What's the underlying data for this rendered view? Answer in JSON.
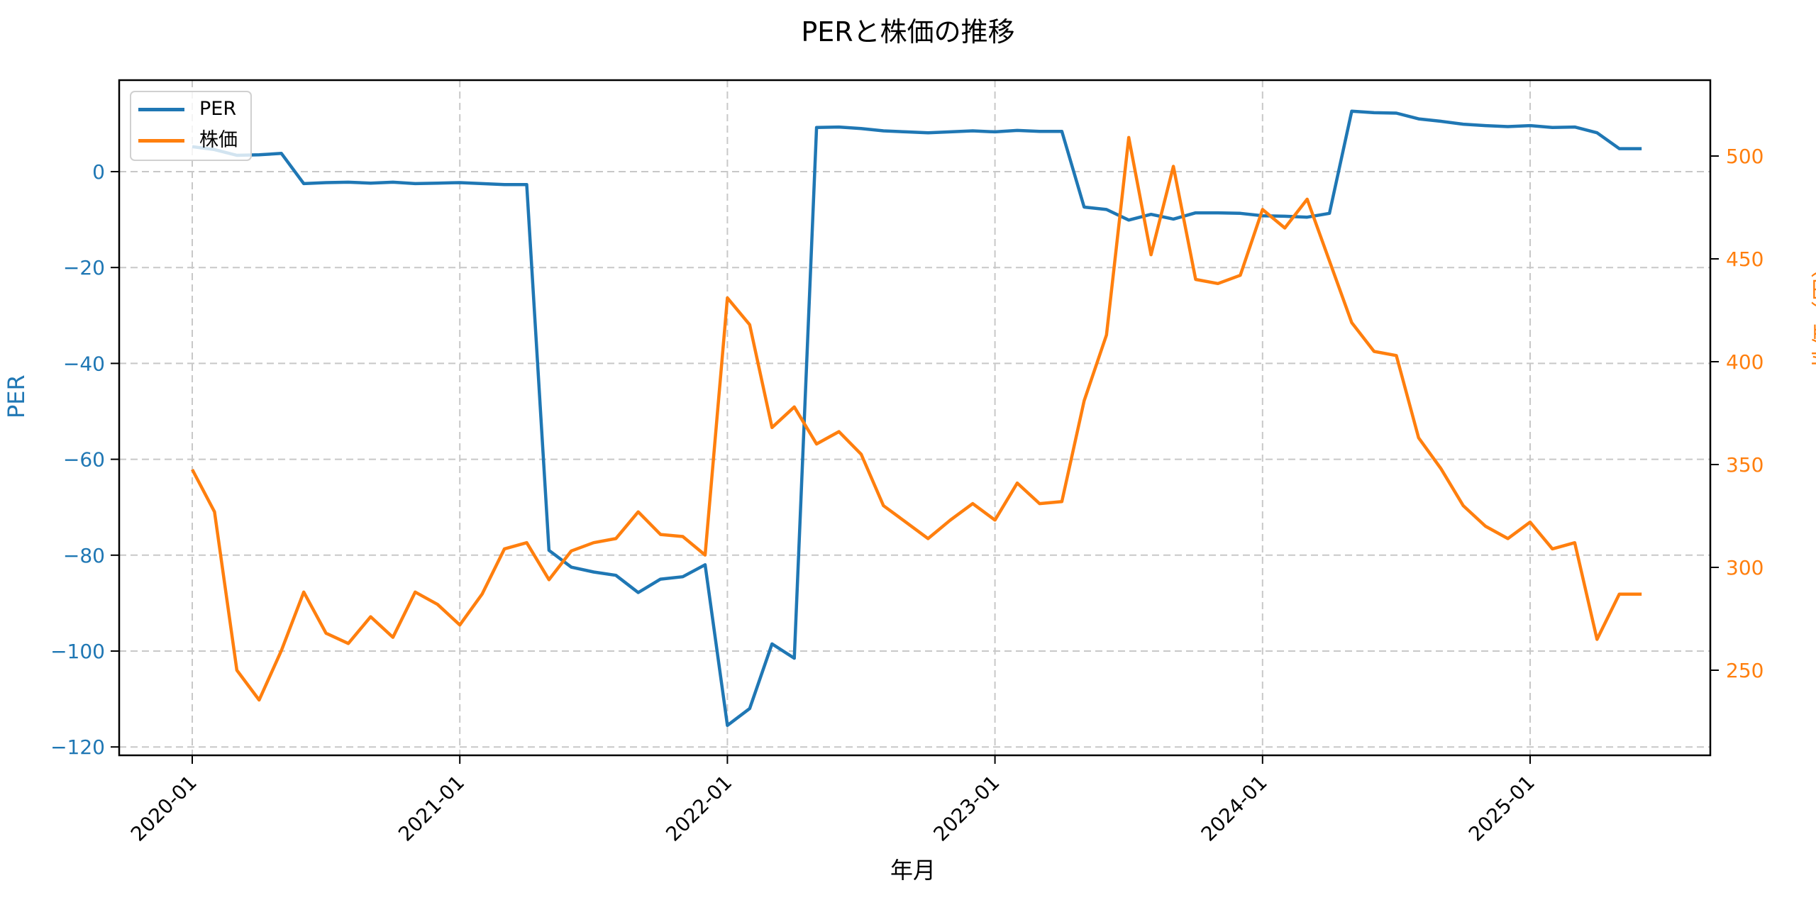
{
  "chart_data": {
    "type": "line",
    "title": "PERと株価の推移",
    "xlabel": "年月",
    "ylabel_left": "PER",
    "ylabel_right": "株価（円）",
    "x_tick_labels": [
      "2020-01",
      "2021-01",
      "2022-01",
      "2023-01",
      "2024-01",
      "2025-01"
    ],
    "y_left_ticks": [
      0,
      -20,
      -40,
      -60,
      -80,
      -100,
      -120
    ],
    "y_right_ticks": [
      500,
      450,
      400,
      350,
      300,
      250
    ],
    "y_left_range": [
      -122,
      18
    ],
    "y_right_range": [
      208,
      538
    ],
    "grid": true,
    "legend_position": "upper left",
    "x": [
      "2020-01",
      "2020-02",
      "2020-03",
      "2020-04",
      "2020-05",
      "2020-06",
      "2020-07",
      "2020-08",
      "2020-09",
      "2020-10",
      "2020-11",
      "2020-12",
      "2021-01",
      "2021-02",
      "2021-03",
      "2021-04",
      "2021-05",
      "2021-06",
      "2021-07",
      "2021-08",
      "2021-09",
      "2021-10",
      "2021-11",
      "2021-12",
      "2022-01",
      "2022-02",
      "2022-03",
      "2022-04",
      "2022-05",
      "2022-06",
      "2022-07",
      "2022-08",
      "2022-09",
      "2022-10",
      "2022-11",
      "2022-12",
      "2023-01",
      "2023-02",
      "2023-03",
      "2023-04",
      "2023-05",
      "2023-06",
      "2023-07",
      "2023-08",
      "2023-09",
      "2023-10",
      "2023-11",
      "2023-12",
      "2024-01",
      "2024-02",
      "2024-03",
      "2024-04",
      "2024-05",
      "2024-06",
      "2024-07",
      "2024-08",
      "2024-09",
      "2024-10",
      "2024-11",
      "2024-12",
      "2025-01",
      "2025-02",
      "2025-03",
      "2025-04",
      "2025-05",
      "2025-06"
    ],
    "series": [
      {
        "name": "PER",
        "axis": "left",
        "color": "#1f77b4",
        "values": [
          5.2,
          4.6,
          3.4,
          3.5,
          3.8,
          -2.5,
          -2.3,
          -2.2,
          -2.4,
          -2.2,
          -2.5,
          -2.4,
          -2.3,
          -2.5,
          -2.7,
          -2.7,
          -79.0,
          -82.5,
          -83.5,
          -84.2,
          -87.8,
          -85.0,
          -84.5,
          -82.0,
          -115.5,
          -112.0,
          -98.5,
          -101.5,
          9.2,
          9.3,
          9.0,
          8.5,
          8.3,
          8.1,
          8.3,
          8.5,
          8.3,
          8.6,
          8.4,
          8.4,
          -7.4,
          -7.9,
          -10.1,
          -8.9,
          -9.9,
          -8.6,
          -8.6,
          -8.7,
          -9.2,
          -9.3,
          -9.5,
          -8.7,
          12.6,
          12.3,
          12.2,
          11.0,
          10.5,
          9.9,
          9.6,
          9.4,
          9.6,
          9.2,
          9.3,
          8.1,
          4.8,
          4.8
        ]
      },
      {
        "name": "株価",
        "axis": "right",
        "color": "#ff7f0e",
        "values": [
          347.6,
          327,
          250,
          235.5,
          259.6,
          288,
          268,
          263,
          276,
          266,
          288,
          282,
          272,
          287,
          309,
          312,
          294,
          308,
          312,
          314,
          327,
          316,
          315,
          306,
          431,
          418,
          368,
          378,
          360,
          366,
          355,
          330,
          322,
          314,
          323,
          331,
          323,
          341,
          331,
          332,
          381,
          413,
          509,
          452,
          495,
          440,
          438,
          442,
          474,
          465,
          479,
          449,
          419,
          405,
          403,
          363,
          348,
          330,
          320,
          314,
          322,
          309,
          312,
          265,
          287,
          287
        ]
      }
    ]
  }
}
